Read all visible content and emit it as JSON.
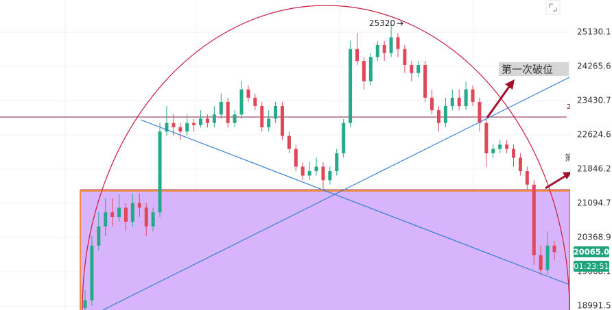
{
  "chart_data": {
    "type": "candlestick",
    "log": true,
    "grid": true,
    "ylim": [
      18912,
      25971
    ],
    "yticks": [
      18991.5,
      19668.1,
      20368.9,
      21094.7,
      21846.2,
      22624.6,
      23430.7,
      24265.6,
      25130.1
    ],
    "up_color": "#26a88a",
    "down_color": "#e0485a",
    "open": [
      18950,
      19100,
      20200,
      20600,
      20900,
      20800,
      21000,
      20700,
      21100,
      21000,
      20600,
      20900,
      22700,
      22900,
      22800,
      22700,
      22900,
      22850,
      23000,
      22900,
      23100,
      23400,
      22900,
      23100,
      23700,
      23500,
      23300,
      22800,
      23000,
      23300,
      22600,
      22300,
      21900,
      21700,
      21800,
      21900,
      21600,
      21800,
      22200,
      22900,
      24700,
      24400,
      23900,
      24500,
      24800,
      24600,
      25000,
      24700,
      24300,
      24100,
      24300,
      23500,
      23200,
      22900,
      23300,
      23500,
      23300,
      23700,
      23400,
      22900,
      22200,
      22300,
      22400,
      22300,
      22100,
      21800,
      21500,
      20000,
      19700,
      20200
    ],
    "high": [
      19300,
      20400,
      20900,
      21200,
      21200,
      21300,
      21100,
      21300,
      21300,
      21100,
      21000,
      22900,
      23300,
      23100,
      22900,
      23100,
      23000,
      23200,
      23100,
      23300,
      23600,
      23500,
      23200,
      23900,
      23800,
      23600,
      23400,
      23200,
      23400,
      23400,
      22700,
      22400,
      22000,
      22000,
      22100,
      22000,
      21900,
      22300,
      23000,
      24900,
      25100,
      24500,
      24600,
      24900,
      24900,
      25320,
      25100,
      24800,
      24400,
      24400,
      24400,
      23700,
      23300,
      23500,
      23700,
      23700,
      23900,
      23800,
      23500,
      23000,
      22400,
      22500,
      22500,
      22400,
      22200,
      21900,
      21600,
      20200,
      20500,
      20300
    ],
    "low": [
      18900,
      19000,
      20100,
      20400,
      20600,
      20700,
      20500,
      20600,
      20800,
      20400,
      20500,
      20800,
      22600,
      22600,
      22500,
      22600,
      22700,
      22800,
      22800,
      22800,
      23000,
      22800,
      22800,
      23000,
      23400,
      23200,
      22700,
      22700,
      22900,
      22500,
      22200,
      21800,
      21600,
      21600,
      21700,
      21400,
      21500,
      21700,
      22100,
      22800,
      24300,
      23700,
      23800,
      24400,
      24400,
      24500,
      24500,
      24100,
      23900,
      24000,
      23400,
      23100,
      22700,
      22800,
      23200,
      23200,
      23200,
      23300,
      22700,
      21900,
      22100,
      22200,
      22200,
      21900,
      21700,
      21400,
      19800,
      19600,
      19600,
      19900
    ],
    "close": [
      19100,
      20200,
      20600,
      20900,
      20800,
      21000,
      20700,
      21100,
      21000,
      20600,
      20900,
      22700,
      22900,
      22800,
      22700,
      22900,
      22850,
      23000,
      22900,
      23100,
      23400,
      22900,
      23100,
      23700,
      23500,
      23300,
      22800,
      23000,
      23300,
      22600,
      22300,
      21900,
      21700,
      21800,
      21900,
      21600,
      21800,
      22200,
      22900,
      24700,
      24400,
      23900,
      24500,
      24800,
      24600,
      25000,
      24700,
      24300,
      24100,
      24300,
      23500,
      23200,
      22900,
      23300,
      23500,
      23300,
      23700,
      23400,
      22900,
      22200,
      22300,
      22400,
      22300,
      22100,
      21800,
      21500,
      20000,
      19700,
      20200,
      20065
    ],
    "high_label": 25320,
    "annotation": "第一次破位",
    "price_tag": "20065.0",
    "timer": "01:23:51",
    "side_labels": [
      "2",
      "第"
    ]
  }
}
